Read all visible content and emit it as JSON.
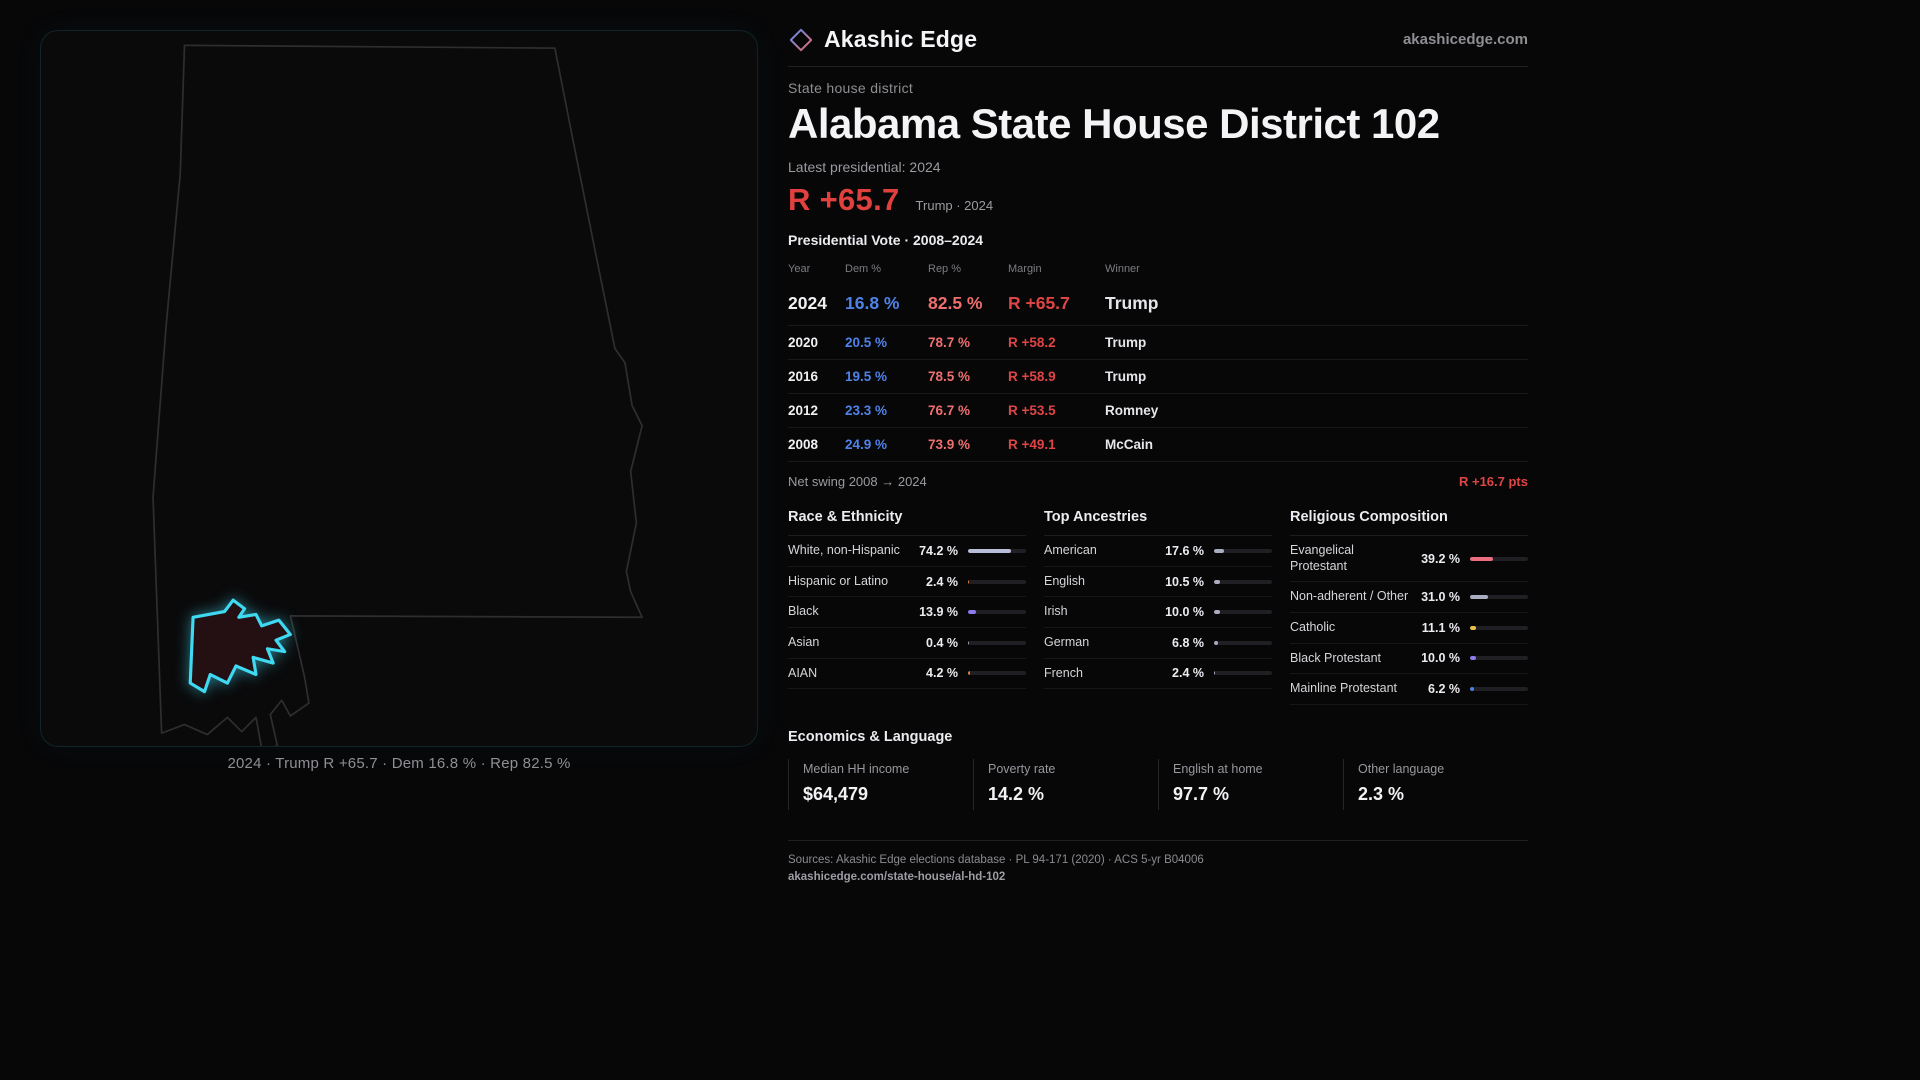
{
  "brand": {
    "name": "Akashic Edge",
    "site": "akashicedge.com"
  },
  "page": {
    "kicker": "State house district",
    "title": "Alabama State House District 102",
    "latest_label": "Latest presidential: 2024",
    "headline_margin": "R +65.7",
    "headline_context": "Trump · 2024"
  },
  "map": {
    "caption": "2024 · Trump  R +65.7 · Dem 16.8 % · Rep 82.5 %",
    "state_outline": "#2e2e30",
    "district_stroke": "#3fd9f2",
    "district_fill": "#241013"
  },
  "colors": {
    "dem_blue": "#4f82e8",
    "rep_red": "#ee6f6f",
    "margin_red": "#e04545",
    "accent_cyan": "#3fd9f2"
  },
  "vote_table": {
    "title": "Presidential Vote · 2008–2024",
    "columns": [
      "Year",
      "Dem %",
      "Rep %",
      "Margin",
      "Winner"
    ],
    "rows": [
      {
        "year": "2024",
        "dem": "16.8 %",
        "rep": "82.5 %",
        "margin": "R +65.7",
        "winner": "Trump"
      },
      {
        "year": "2020",
        "dem": "20.5 %",
        "rep": "78.7 %",
        "margin": "R +58.2",
        "winner": "Trump"
      },
      {
        "year": "2016",
        "dem": "19.5 %",
        "rep": "78.5 %",
        "margin": "R +58.9",
        "winner": "Trump"
      },
      {
        "year": "2012",
        "dem": "23.3 %",
        "rep": "76.7 %",
        "margin": "R +53.5",
        "winner": "Romney"
      },
      {
        "year": "2008",
        "dem": "24.9 %",
        "rep": "73.9 %",
        "margin": "R +49.1",
        "winner": "McCain"
      }
    ]
  },
  "net_swing": {
    "label": "Net swing 2008 → 2024",
    "value": "R +16.7 pts"
  },
  "demographics": {
    "race": {
      "title": "Race & Ethnicity",
      "rows": [
        {
          "label": "White, non-Hispanic",
          "value": "74.2 %",
          "pct": 74.2,
          "color": "#b9bdd9"
        },
        {
          "label": "Hispanic or Latino",
          "value": "2.4 %",
          "pct": 2.4,
          "color": "#e07b3a"
        },
        {
          "label": "Black",
          "value": "13.9 %",
          "pct": 13.9,
          "color": "#8b7bec"
        },
        {
          "label": "Asian",
          "value": "0.4 %",
          "pct": 0.4,
          "color": "#9a9aa8"
        },
        {
          "label": "AIAN",
          "value": "4.2 %",
          "pct": 4.2,
          "color": "#e07b3a"
        }
      ]
    },
    "ancestries": {
      "title": "Top Ancestries",
      "rows": [
        {
          "label": "American",
          "value": "17.6 %",
          "pct": 17.6,
          "color": "#a9adbf"
        },
        {
          "label": "English",
          "value": "10.5 %",
          "pct": 10.5,
          "color": "#a9adbf"
        },
        {
          "label": "Irish",
          "value": "10.0 %",
          "pct": 10.0,
          "color": "#a9adbf"
        },
        {
          "label": "German",
          "value": "6.8 %",
          "pct": 6.8,
          "color": "#a9adbf"
        },
        {
          "label": "French",
          "value": "2.4 %",
          "pct": 2.4,
          "color": "#a9adbf"
        }
      ]
    },
    "religion": {
      "title": "Religious Composition",
      "rows": [
        {
          "label": "Evangelical Protestant",
          "value": "39.2 %",
          "pct": 39.2,
          "color": "#ec6e7e"
        },
        {
          "label": "Non-adherent / Other",
          "value": "31.0 %",
          "pct": 31.0,
          "color": "#a9adbf"
        },
        {
          "label": "Catholic",
          "value": "11.1 %",
          "pct": 11.1,
          "color": "#e8c24a"
        },
        {
          "label": "Black Protestant",
          "value": "10.0 %",
          "pct": 10.0,
          "color": "#8b7bec"
        },
        {
          "label": "Mainline Protestant",
          "value": "6.2 %",
          "pct": 6.2,
          "color": "#4f82e8"
        }
      ]
    }
  },
  "economics": {
    "title": "Economics & Language",
    "stats": [
      {
        "label": "Median HH income",
        "value": "$64,479"
      },
      {
        "label": "Poverty rate",
        "value": "14.2 %"
      },
      {
        "label": "English at home",
        "value": "97.7 %"
      },
      {
        "label": "Other language",
        "value": "2.3 %"
      }
    ]
  },
  "footer": {
    "sources": "Sources: Akashic Edge elections database · PL 94-171 (2020) · ACS 5-yr B04006",
    "permalink": "akashicedge.com/state-house/al-hd-102"
  }
}
